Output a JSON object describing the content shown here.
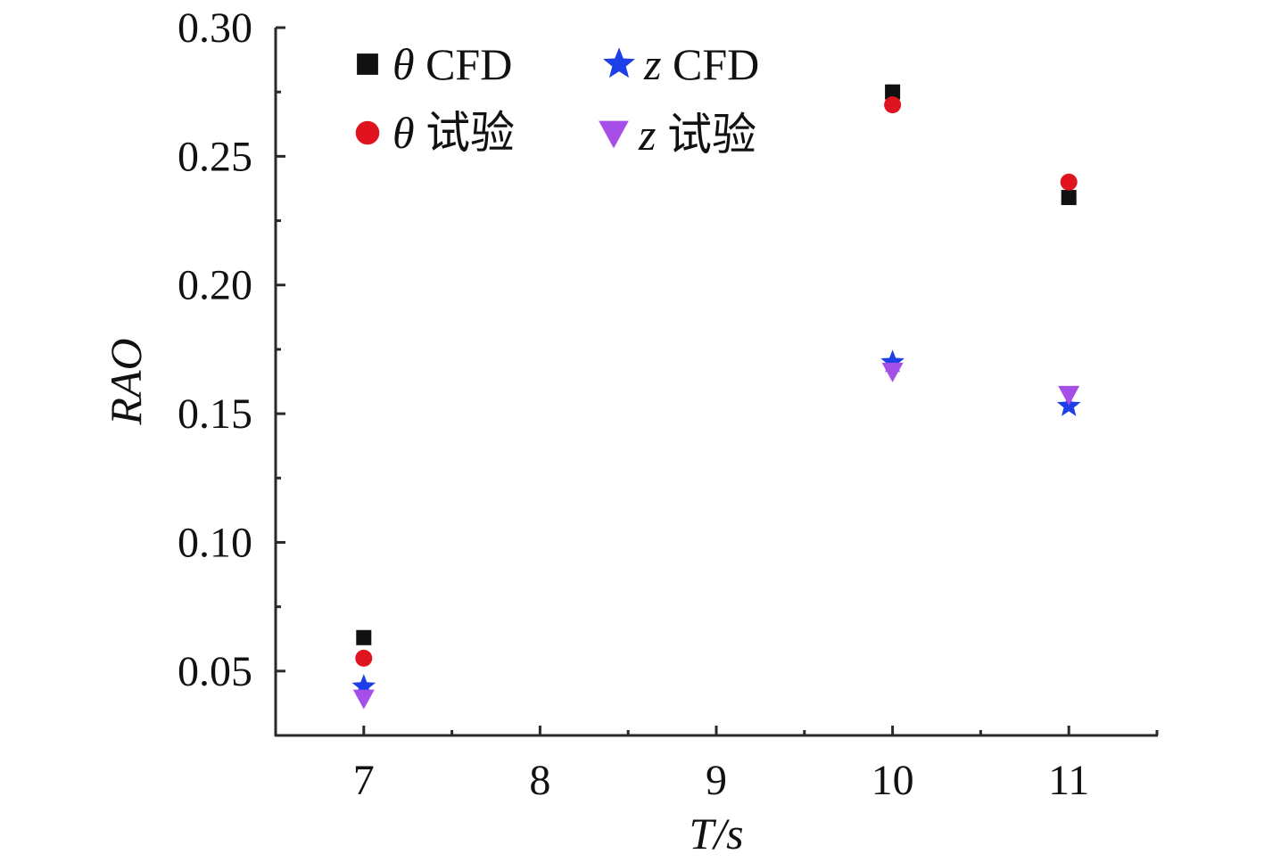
{
  "chart_data": {
    "type": "scatter",
    "title": "",
    "xlabel": "T/s",
    "ylabel": "RAO",
    "xlim": [
      6.5,
      11.5
    ],
    "ylim": [
      0.025,
      0.3
    ],
    "xticks": [
      {
        "value": 7,
        "label": "7"
      },
      {
        "value": 8,
        "label": "8"
      },
      {
        "value": 9,
        "label": "9"
      },
      {
        "value": 10,
        "label": "10"
      },
      {
        "value": 11,
        "label": "11"
      }
    ],
    "xminor": [
      7.5,
      8.5,
      9.5,
      10.5,
      11.5
    ],
    "yticks": [
      {
        "value": 0.05,
        "label": "0.05"
      },
      {
        "value": 0.1,
        "label": "0.10"
      },
      {
        "value": 0.15,
        "label": "0.15"
      },
      {
        "value": 0.2,
        "label": "0.20"
      },
      {
        "value": 0.25,
        "label": "0.25"
      },
      {
        "value": 0.3,
        "label": "0.30"
      }
    ],
    "yminor": [
      0.075,
      0.125,
      0.175,
      0.225,
      0.275
    ],
    "grid": false,
    "legend_position": "top",
    "series": [
      {
        "name": "θ CFD",
        "symbol": "θ",
        "label": "CFD",
        "marker": "square",
        "color": "#111111",
        "x": [
          7,
          10,
          11
        ],
        "values": [
          0.063,
          0.275,
          0.234
        ]
      },
      {
        "name": "θ 试验",
        "symbol": "θ",
        "label": "试验",
        "marker": "circle",
        "color": "#e0141e",
        "x": [
          7,
          10,
          11
        ],
        "values": [
          0.055,
          0.27,
          0.24
        ]
      },
      {
        "name": "z CFD",
        "symbol": "z",
        "label": "CFD",
        "marker": "star",
        "color": "#1f3fe6",
        "x": [
          7,
          10,
          11
        ],
        "values": [
          0.044,
          0.17,
          0.153
        ]
      },
      {
        "name": "z 试验",
        "symbol": "z",
        "label": "试验",
        "marker": "triangle-down",
        "color": "#a64ee8",
        "x": [
          7,
          10,
          11
        ],
        "values": [
          0.039,
          0.166,
          0.157
        ]
      }
    ]
  }
}
